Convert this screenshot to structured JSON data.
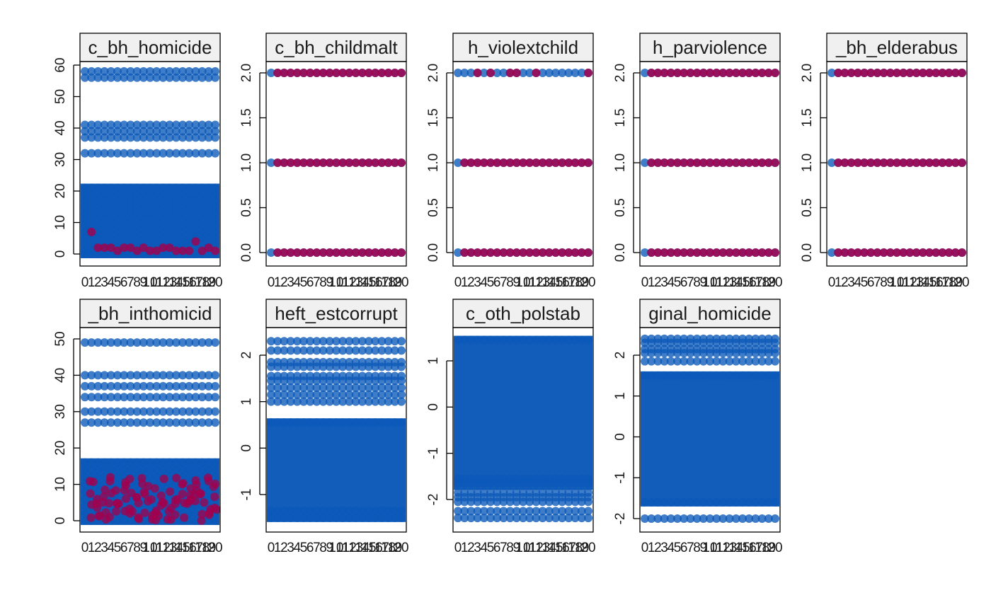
{
  "colors": {
    "observed": "#0a58b8",
    "imputed": "#a3004c",
    "strip_bg": "#f0f0f0",
    "frame": "#000000"
  },
  "x_tick_labels": [
    "0",
    "1",
    "2",
    "3",
    "4",
    "5",
    "6",
    "7",
    "8",
    "9",
    "10",
    "11",
    "12",
    "13",
    "14",
    "15",
    "16",
    "17",
    "18",
    "19",
    "20"
  ],
  "chart_data": [
    {
      "type": "scatter",
      "title": "c_bh_homicide",
      "ylim": [
        0,
        60
      ],
      "yticks": [
        "0",
        "10",
        "20",
        "30",
        "40",
        "50",
        "60"
      ],
      "xlim": [
        0,
        20
      ],
      "observed_levels": [
        58,
        56,
        41,
        39,
        37,
        32,
        21,
        19,
        17,
        15,
        13,
        11,
        9,
        7,
        5,
        3,
        1,
        0
      ],
      "observed_band": [
        0,
        21
      ],
      "imputed_x": [
        1,
        2,
        3,
        4,
        5,
        6,
        7,
        8,
        9,
        10,
        11,
        12,
        13,
        14,
        15,
        16,
        17,
        18,
        19,
        20
      ],
      "imputed_y": [
        7,
        2,
        2,
        2,
        1,
        2,
        2,
        1,
        2,
        1,
        1,
        2,
        2,
        1,
        1,
        1,
        4,
        1,
        2,
        1
      ]
    },
    {
      "type": "scatter",
      "title": "c_bh_childmalt",
      "ylim": [
        0,
        2
      ],
      "yticks": [
        "0.0",
        "0.5",
        "1.0",
        "1.5",
        "2.0"
      ],
      "xlim": [
        0,
        20
      ],
      "observed_levels": [
        0,
        1,
        2
      ],
      "imputed_levels": [
        0,
        1,
        2
      ],
      "imputed_start": 1
    },
    {
      "type": "scatter",
      "title": "h_violextchild",
      "ylim": [
        0,
        2
      ],
      "yticks": [
        "0.0",
        "0.5",
        "1.0",
        "1.5",
        "2.0"
      ],
      "xlim": [
        0,
        20
      ],
      "observed_levels": [
        0,
        1,
        2
      ],
      "imputed_levels": [
        0,
        1
      ],
      "imputed_start": 1,
      "imputed_sparse_y": 2,
      "imputed_sparse_x": [
        3,
        5,
        8,
        9,
        12,
        20
      ]
    },
    {
      "type": "scatter",
      "title": "h_parviolence",
      "ylim": [
        0,
        2
      ],
      "yticks": [
        "0.0",
        "0.5",
        "1.0",
        "1.5",
        "2.0"
      ],
      "xlim": [
        0,
        20
      ],
      "observed_levels": [
        0,
        1,
        2
      ],
      "imputed_levels": [
        0,
        1,
        2
      ],
      "imputed_start": 1
    },
    {
      "type": "scatter",
      "title": "_bh_elderabus",
      "ylim": [
        0,
        2
      ],
      "yticks": [
        "0.0",
        "0.5",
        "1.0",
        "1.5",
        "2.0"
      ],
      "xlim": [
        0,
        20
      ],
      "observed_levels": [
        0,
        1,
        2
      ],
      "imputed_levels": [
        0,
        1,
        2
      ],
      "imputed_start": 1
    },
    {
      "type": "scatter",
      "title": "_bh_inthomicid",
      "ylim": [
        0,
        50
      ],
      "yticks": [
        "0",
        "10",
        "20",
        "30",
        "40",
        "50"
      ],
      "xlim": [
        0,
        20
      ],
      "observed_levels": [
        49,
        40,
        37,
        34,
        30,
        27,
        16,
        14,
        12,
        10,
        8,
        6,
        4,
        2,
        0
      ],
      "observed_band": [
        0,
        16
      ],
      "imputed_cloud": [
        0,
        12
      ]
    },
    {
      "type": "scatter",
      "title": "heft_estcorrupt",
      "ylim": [
        -1.5,
        2.3
      ],
      "yticks": [
        "-1",
        "0",
        "1",
        "2"
      ],
      "xlim": [
        0,
        20
      ],
      "observed_levels": [
        2.3,
        2.1,
        1.85,
        1.75,
        1.55,
        1.45,
        1.3,
        1.15,
        1.0,
        0.55,
        -1.35,
        -1.5
      ],
      "observed_band": [
        -1.5,
        0.55
      ]
    },
    {
      "type": "scatter",
      "title": "c_oth_polstab",
      "ylim": [
        -2.4,
        1.45
      ],
      "yticks": [
        "-2",
        "-1",
        "0",
        "1"
      ],
      "xlim": [
        0,
        20
      ],
      "observed_levels": [
        1.45,
        -1.55,
        -1.65,
        -1.85,
        -1.95,
        -2.05,
        -2.25,
        -2.4
      ],
      "observed_band": [
        -1.7,
        1.45
      ]
    },
    {
      "type": "scatter",
      "title": "ginal_homicide",
      "ylim": [
        -2.0,
        2.4
      ],
      "yticks": [
        "-2",
        "-1",
        "0",
        "1",
        "2"
      ],
      "xlim": [
        0,
        20
      ],
      "observed_levels": [
        2.4,
        2.3,
        2.15,
        2.05,
        1.85,
        1.5,
        -1.6,
        -2.0
      ],
      "observed_band": [
        -1.6,
        1.5
      ]
    }
  ]
}
